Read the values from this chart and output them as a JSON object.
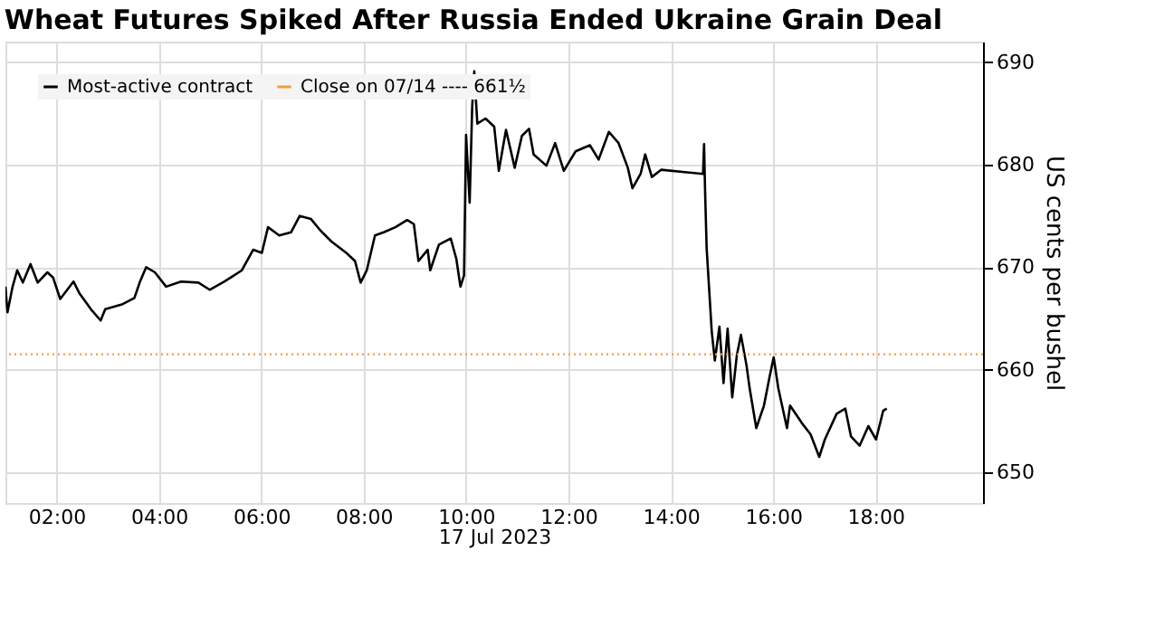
{
  "chart_data": {
    "type": "line",
    "title": "Wheat Futures Spiked After Russia Ended Ukraine Grain Deal",
    "xlabel": "17 Jul 2023",
    "ylabel": "US cents per bushel",
    "xlim": [
      1.0,
      20.1
    ],
    "xticks": [
      {
        "value": 2,
        "label": "02:00"
      },
      {
        "value": 4,
        "label": "04:00"
      },
      {
        "value": 6,
        "label": "06:00"
      },
      {
        "value": 8,
        "label": "08:00"
      },
      {
        "value": 10,
        "label": "10:00"
      },
      {
        "value": 12,
        "label": "12:00"
      },
      {
        "value": 14,
        "label": "14:00"
      },
      {
        "value": 16,
        "label": "16:00"
      },
      {
        "value": 18,
        "label": "18:00"
      }
    ],
    "ylim": [
      647,
      692
    ],
    "yticks": [
      650,
      660,
      670,
      680,
      690
    ],
    "grid": true,
    "legend": "top left",
    "line_style": "solid",
    "marker": "none",
    "series": [
      {
        "name": "Most-active contract",
        "color": "#000000",
        "x": [
          1.0,
          1.04,
          1.14,
          1.23,
          1.34,
          1.49,
          1.63,
          1.82,
          1.93,
          2.07,
          2.33,
          2.44,
          2.67,
          2.86,
          2.95,
          3.29,
          3.52,
          3.63,
          3.75,
          3.92,
          4.14,
          4.43,
          4.77,
          4.99,
          5.28,
          5.56,
          5.62,
          5.84,
          6.01,
          6.13,
          6.35,
          6.58,
          6.75,
          6.97,
          7.15,
          7.37,
          7.66,
          7.83,
          7.94,
          8.06,
          8.22,
          8.39,
          8.62,
          8.85,
          8.98,
          9.07,
          9.25,
          9.3,
          9.47,
          9.7,
          9.81,
          9.89,
          9.96,
          10.0,
          10.07,
          10.12,
          10.16,
          10.22,
          10.38,
          10.55,
          10.64,
          10.78,
          10.95,
          11.09,
          11.23,
          11.32,
          11.57,
          11.74,
          11.91,
          12.14,
          12.42,
          12.59,
          12.79,
          12.98,
          13.16,
          13.25,
          13.41,
          13.5,
          13.63,
          13.81,
          14.63,
          14.65,
          14.67,
          14.7,
          14.74,
          14.8,
          14.86,
          14.95,
          15.03,
          15.11,
          15.2,
          15.29,
          15.37,
          15.48,
          15.54,
          15.67,
          15.82,
          15.93,
          16.01,
          16.1,
          16.27,
          16.33,
          16.56,
          16.73,
          16.9,
          17.01,
          17.24,
          17.41,
          17.52,
          17.69,
          17.86,
          18.01,
          18.15,
          18.22
        ],
        "values": [
          668.1,
          665.6,
          668.1,
          669.7,
          668.5,
          670.3,
          668.5,
          669.5,
          669.0,
          666.9,
          668.6,
          667.5,
          665.9,
          664.8,
          665.9,
          666.4,
          667.0,
          668.6,
          670.0,
          669.5,
          668.1,
          668.6,
          668.5,
          667.8,
          668.6,
          669.5,
          669.7,
          671.7,
          671.4,
          673.9,
          673.1,
          673.4,
          675.0,
          674.7,
          673.6,
          672.5,
          671.4,
          670.6,
          668.5,
          669.7,
          673.1,
          673.4,
          673.9,
          674.6,
          674.2,
          670.6,
          671.7,
          669.7,
          672.2,
          672.8,
          670.8,
          668.1,
          669.2,
          682.9,
          676.3,
          685.7,
          689.1,
          684.0,
          684.5,
          683.7,
          679.4,
          683.4,
          679.7,
          682.8,
          683.5,
          681.0,
          679.9,
          682.1,
          679.4,
          681.3,
          681.9,
          680.5,
          683.2,
          682.1,
          679.7,
          677.7,
          679.1,
          681.0,
          678.8,
          679.5,
          679.1,
          682.0,
          677.4,
          671.9,
          668.6,
          663.7,
          660.9,
          664.2,
          658.7,
          664.0,
          657.3,
          661.4,
          663.4,
          660.4,
          658.2,
          654.3,
          656.5,
          659.3,
          661.2,
          658.2,
          654.3,
          656.5,
          654.8,
          653.7,
          651.5,
          653.2,
          655.7,
          656.2,
          653.5,
          652.6,
          654.5,
          653.2,
          656.0,
          656.2
        ]
      }
    ],
    "ref_lines": [
      {
        "axis": "y",
        "value": 661.5,
        "label": "Close on 07/14 ---- 661½",
        "color": "#f0a040",
        "line_style": "dotted"
      }
    ]
  }
}
